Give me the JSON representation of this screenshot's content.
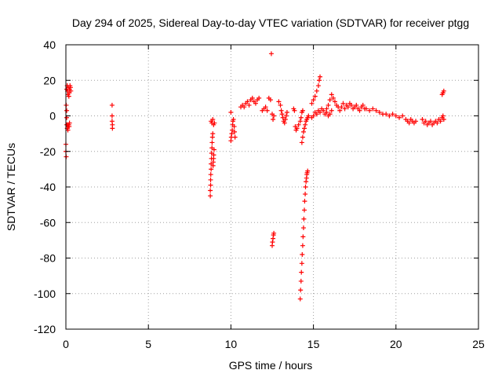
{
  "chart_data": {
    "type": "scatter",
    "title": "Day 294 of 2025, Sidereal Day-to-day VTEC variation (SDTVAR) for receiver ptgg",
    "xlabel": "GPS time / hours",
    "ylabel": "SDTVAR / TECUs",
    "xlim": [
      0,
      25
    ],
    "ylim": [
      -120,
      40
    ],
    "xticks": [
      0,
      5,
      10,
      15,
      20,
      25
    ],
    "yticks": [
      -120,
      -100,
      -80,
      -60,
      -40,
      -20,
      0,
      20,
      40
    ],
    "grid": true,
    "marker": "+",
    "marker_color": "#ff0000",
    "series": [
      {
        "name": "SDTVAR",
        "segments": [
          [
            [
              0.05,
              15
            ],
            [
              0.08,
              17
            ],
            [
              0.1,
              14
            ],
            [
              0.12,
              12
            ],
            [
              0.15,
              16
            ],
            [
              0.18,
              11
            ],
            [
              0.2,
              13
            ],
            [
              0.22,
              15
            ],
            [
              0.25,
              17
            ],
            [
              0.28,
              16
            ],
            [
              0.3,
              14
            ]
          ],
          [
            [
              0.02,
              6
            ],
            [
              0.05,
              3
            ],
            [
              0.05,
              -1
            ],
            [
              0.05,
              -5
            ],
            [
              0.08,
              -7
            ],
            [
              0.1,
              -5
            ],
            [
              0.12,
              -8
            ],
            [
              0.15,
              -6
            ],
            [
              0.18,
              -5
            ],
            [
              0.2,
              -6
            ],
            [
              0.22,
              -4
            ]
          ],
          [
            [
              0.0,
              -16
            ],
            [
              0.0,
              -20
            ],
            [
              0.02,
              -23
            ]
          ],
          [
            [
              2.8,
              6
            ],
            [
              2.8,
              0
            ],
            [
              2.8,
              -3
            ],
            [
              2.82,
              -5
            ],
            [
              2.82,
              -7
            ]
          ],
          [
            [
              8.75,
              -45
            ],
            [
              8.75,
              -42
            ],
            [
              8.77,
              -39
            ],
            [
              8.77,
              -36
            ],
            [
              8.78,
              -33
            ],
            [
              8.8,
              -30
            ],
            [
              8.8,
              -27
            ],
            [
              8.82,
              -24
            ],
            [
              8.83,
              -21
            ],
            [
              8.85,
              -18
            ],
            [
              8.86,
              -15
            ],
            [
              8.88,
              -12
            ],
            [
              8.9,
              -10
            ],
            [
              8.92,
              -28
            ],
            [
              8.93,
              -26
            ],
            [
              8.95,
              -24
            ],
            [
              8.96,
              -22
            ],
            [
              8.98,
              -19
            ]
          ],
          [
            [
              8.8,
              -3
            ],
            [
              8.85,
              -4
            ],
            [
              8.9,
              -2
            ],
            [
              8.95,
              -5
            ],
            [
              9.0,
              -4
            ]
          ],
          [
            [
              10.0,
              -14
            ],
            [
              10.02,
              -12
            ],
            [
              10.05,
              -10
            ],
            [
              10.08,
              -8
            ],
            [
              10.1,
              -5
            ],
            [
              10.12,
              -3
            ],
            [
              10.15,
              -2
            ],
            [
              10.2,
              -6
            ],
            [
              10.22,
              -9
            ],
            [
              10.25,
              -12
            ],
            [
              10.0,
              2
            ]
          ],
          [
            [
              10.6,
              5
            ],
            [
              10.7,
              6
            ],
            [
              10.8,
              5
            ],
            [
              10.9,
              7
            ],
            [
              11.0,
              8
            ],
            [
              11.1,
              6
            ],
            [
              11.2,
              9
            ],
            [
              11.3,
              10
            ],
            [
              11.4,
              8
            ],
            [
              11.5,
              7
            ],
            [
              11.6,
              9
            ],
            [
              11.7,
              10
            ]
          ],
          [
            [
              11.9,
              3
            ],
            [
              12.0,
              4
            ],
            [
              12.1,
              5
            ],
            [
              12.2,
              3
            ],
            [
              12.3,
              10
            ],
            [
              12.4,
              9
            ],
            [
              12.5,
              1
            ],
            [
              12.55,
              -2
            ],
            [
              12.6,
              0
            ]
          ],
          [
            [
              12.45,
              35
            ]
          ],
          [
            [
              12.5,
              -73
            ],
            [
              12.52,
              -71
            ],
            [
              12.55,
              -69
            ],
            [
              12.58,
              -67
            ],
            [
              12.6,
              -66
            ]
          ],
          [
            [
              12.9,
              8
            ],
            [
              13.0,
              6
            ],
            [
              13.05,
              3
            ],
            [
              13.1,
              1
            ],
            [
              13.15,
              -1
            ],
            [
              13.2,
              -3
            ],
            [
              13.25,
              -4
            ],
            [
              13.3,
              -2
            ],
            [
              13.35,
              0
            ],
            [
              13.4,
              2
            ]
          ],
          [
            [
              13.8,
              4
            ],
            [
              13.85,
              3
            ],
            [
              13.9,
              -6
            ],
            [
              13.95,
              -8
            ],
            [
              14.0,
              -7
            ],
            [
              14.1,
              -5
            ],
            [
              14.2,
              -3
            ],
            [
              14.25,
              -1
            ],
            [
              14.3,
              2
            ],
            [
              14.35,
              3
            ]
          ],
          [
            [
              14.2,
              -103
            ],
            [
              14.22,
              -98
            ],
            [
              14.25,
              -93
            ],
            [
              14.27,
              -88
            ],
            [
              14.3,
              -83
            ],
            [
              14.32,
              -78
            ],
            [
              14.35,
              -73
            ],
            [
              14.37,
              -68
            ],
            [
              14.4,
              -63
            ],
            [
              14.42,
              -58
            ],
            [
              14.45,
              -53
            ],
            [
              14.47,
              -48
            ],
            [
              14.5,
              -44
            ],
            [
              14.52,
              -40
            ],
            [
              14.55,
              -37
            ],
            [
              14.58,
              -35
            ],
            [
              14.6,
              -33
            ],
            [
              14.62,
              -32
            ],
            [
              14.65,
              -31
            ]
          ],
          [
            [
              14.3,
              -15
            ],
            [
              14.35,
              -12
            ],
            [
              14.4,
              -9
            ],
            [
              14.45,
              -7
            ],
            [
              14.5,
              -5
            ],
            [
              14.55,
              -3
            ],
            [
              14.6,
              -2
            ],
            [
              14.65,
              -1
            ],
            [
              14.7,
              0
            ]
          ],
          [
            [
              14.9,
              -1
            ],
            [
              15.0,
              0
            ],
            [
              15.1,
              2
            ],
            [
              15.2,
              1
            ],
            [
              15.3,
              3
            ],
            [
              15.4,
              2
            ],
            [
              15.5,
              4
            ],
            [
              15.6,
              3
            ],
            [
              15.7,
              1
            ],
            [
              15.8,
              2
            ],
            [
              15.9,
              0
            ],
            [
              16.0,
              1
            ],
            [
              16.1,
              3
            ]
          ],
          [
            [
              14.9,
              7
            ],
            [
              15.0,
              9
            ],
            [
              15.1,
              11
            ],
            [
              15.2,
              14
            ],
            [
              15.3,
              17
            ],
            [
              15.35,
              20
            ],
            [
              15.4,
              22
            ]
          ],
          [
            [
              15.8,
              4
            ],
            [
              15.9,
              6
            ],
            [
              16.0,
              9
            ],
            [
              16.1,
              12
            ],
            [
              16.2,
              10
            ],
            [
              16.3,
              8
            ],
            [
              16.4,
              6
            ],
            [
              16.5,
              5
            ],
            [
              16.6,
              3
            ],
            [
              16.7,
              5
            ],
            [
              16.8,
              7
            ]
          ],
          [
            [
              16.9,
              4
            ],
            [
              17.0,
              6
            ],
            [
              17.1,
              5
            ],
            [
              17.2,
              7
            ],
            [
              17.3,
              6
            ],
            [
              17.4,
              4
            ],
            [
              17.5,
              5
            ],
            [
              17.6,
              6
            ],
            [
              17.7,
              4
            ],
            [
              17.8,
              3
            ],
            [
              17.9,
              5
            ],
            [
              18.0,
              6
            ],
            [
              18.1,
              4
            ]
          ],
          [
            [
              18.2,
              4
            ],
            [
              18.4,
              3
            ],
            [
              18.6,
              4
            ],
            [
              18.8,
              3
            ],
            [
              19.0,
              2
            ],
            [
              19.2,
              1
            ],
            [
              19.4,
              1
            ],
            [
              19.6,
              0
            ],
            [
              19.8,
              1
            ],
            [
              20.0,
              0
            ],
            [
              20.2,
              -1
            ],
            [
              20.4,
              0
            ]
          ],
          [
            [
              20.6,
              -2
            ],
            [
              20.7,
              -3
            ],
            [
              20.8,
              -4
            ],
            [
              20.9,
              -2
            ],
            [
              21.0,
              -3
            ],
            [
              21.1,
              -4
            ],
            [
              21.2,
              -3
            ]
          ],
          [
            [
              21.6,
              -2
            ],
            [
              21.7,
              -4
            ],
            [
              21.8,
              -3
            ],
            [
              21.9,
              -5
            ],
            [
              22.0,
              -4
            ],
            [
              22.1,
              -3
            ],
            [
              22.2,
              -5
            ],
            [
              22.3,
              -4
            ],
            [
              22.4,
              -3
            ],
            [
              22.5,
              -4
            ],
            [
              22.6,
              -2
            ],
            [
              22.7,
              -3
            ],
            [
              22.8,
              -1
            ],
            [
              22.85,
              0
            ],
            [
              22.9,
              -2
            ]
          ],
          [
            [
              22.8,
              12
            ],
            [
              22.85,
              13
            ],
            [
              22.9,
              14
            ]
          ]
        ]
      }
    ]
  }
}
